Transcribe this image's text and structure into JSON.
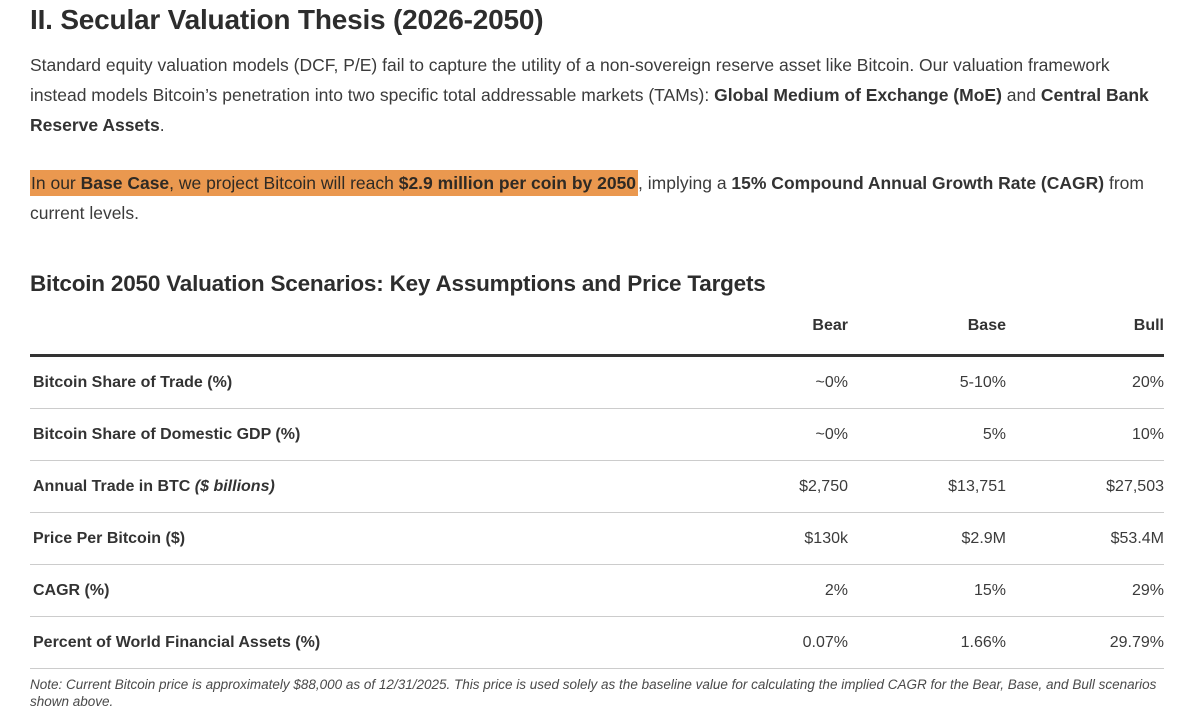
{
  "page": {
    "heading": "II. Secular Valuation Thesis (2026-2050)"
  },
  "intro": {
    "seg1": "Standard equity valuation models (DCF, P/E) fail to capture the utility of a non-sovereign reserve asset like Bitcoin. Our valuation framework instead models Bitcoin’s penetration into two specific total addressable markets (TAMs): ",
    "seg2_bold": "Global Medium of Exchange (MoE)",
    "seg3": " and ",
    "seg4_bold": "Central Bank Reserve Assets",
    "seg5": "."
  },
  "thesis": {
    "highlight_color": "#EA984F",
    "hl1": "In our ",
    "hl2_bold": "Base Case",
    "hl3": ", we project Bitcoin will reach ",
    "hl4_bold": "$2.9 million per coin by 2050",
    "rest1": ", implying a ",
    "rest2_bold": "15% Compound Annual Growth Rate (CAGR)",
    "rest3": " from current levels."
  },
  "table": {
    "title": "Bitcoin 2050 Valuation Scenarios: Key Assumptions and Price Targets",
    "columns": [
      "Bear",
      "Base",
      "Bull"
    ],
    "rows": [
      {
        "label": "Bitcoin Share of Trade (%)",
        "suffix": "",
        "values": [
          "~0%",
          "5-10%",
          "20%"
        ]
      },
      {
        "label": "Bitcoin Share of Domestic GDP (%)",
        "suffix": "",
        "values": [
          "~0%",
          "5%",
          "10%"
        ]
      },
      {
        "label": "Annual Trade in BTC",
        "suffix": " ($ billions)",
        "values": [
          "$2,750",
          "$13,751",
          "$27,503"
        ]
      },
      {
        "label": "Price Per Bitcoin ($)",
        "suffix": "",
        "values": [
          "$130k",
          "$2.9M",
          "$53.4M"
        ]
      },
      {
        "label": "CAGR (%)",
        "suffix": "",
        "values": [
          "2%",
          "15%",
          "29%"
        ]
      },
      {
        "label": "Percent of World Financial Assets (%)",
        "suffix": "",
        "values": [
          "0.07%",
          "1.66%",
          "29.79%"
        ]
      }
    ],
    "note": "Note: Current Bitcoin price is approximately $88,000 as of 12/31/2025. This price is used solely as the baseline value for calculating the implied CAGR for the Bear, Base, and Bull scenarios shown above."
  }
}
